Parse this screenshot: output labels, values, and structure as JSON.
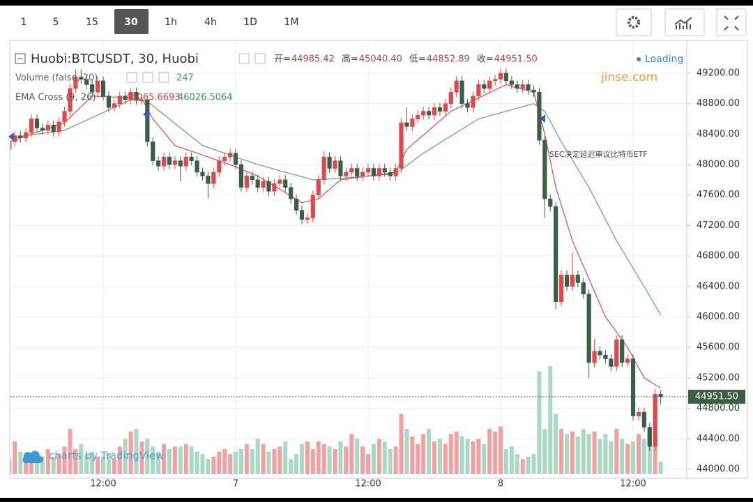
{
  "toolbar": {
    "intervals": [
      "1",
      "5",
      "15",
      "30",
      "1h",
      "4h",
      "1D",
      "1M"
    ]
  },
  "chart_data": {
    "type": "candlestick",
    "title": "Huobi:BTCUSDT, 30, Huobi",
    "legend_ohlc": [
      {
        "label": "开=",
        "value": "44985.42"
      },
      {
        "label": "高=",
        "value": "45040.40"
      },
      {
        "label": "低=",
        "value": "44852.89"
      },
      {
        "label": "收=",
        "value": "44951.50"
      }
    ],
    "volume_label": "Volume (false, 20)",
    "ema_label": "EMA Cross (9, 26)",
    "status": "Loading",
    "watermark": "jinse.com",
    "annotation": "SEC决定延迟审议比特币ETF",
    "branding": "charts by TradingView",
    "last_price_label": "44951.50",
    "categories": [
      null,
      null,
      null,
      null,
      null,
      null,
      null,
      null,
      null,
      null,
      null,
      null,
      null,
      null,
      null,
      null,
      null,
      "12:00",
      null,
      null,
      null,
      null,
      null,
      null,
      null,
      null,
      null,
      null,
      null,
      null,
      null,
      null,
      null,
      null,
      null,
      null,
      null,
      null,
      null,
      null,
      null,
      "7",
      null,
      null,
      null,
      null,
      null,
      null,
      null,
      null,
      null,
      null,
      null,
      null,
      null,
      null,
      null,
      null,
      null,
      null,
      null,
      null,
      null,
      null,
      null,
      "12:00",
      null,
      null,
      null,
      null,
      null,
      null,
      null,
      null,
      null,
      null,
      null,
      null,
      null,
      null,
      null,
      null,
      null,
      null,
      null,
      null,
      null,
      null,
      null,
      "8",
      null,
      null,
      null,
      null,
      null,
      null,
      null,
      null,
      null,
      null,
      null,
      null,
      null,
      null,
      null,
      null,
      null,
      null,
      null,
      null,
      null,
      null,
      null,
      "12:00",
      null,
      null,
      null,
      null,
      null
    ],
    "open": [
      48200,
      48300,
      48380,
      48350,
      48420,
      48600,
      48480,
      48450,
      48520,
      48430,
      48560,
      48700,
      49000,
      49150,
      49120,
      49050,
      48950,
      49100,
      48900,
      48750,
      48800,
      48900,
      48850,
      48950,
      48850,
      48850,
      48300,
      48050,
      47980,
      48100,
      48000,
      48050,
      47980,
      48100,
      48050,
      47900,
      47850,
      47750,
      47900,
      48050,
      48100,
      48150,
      48000,
      47700,
      47850,
      47800,
      47700,
      47780,
      47650,
      47750,
      47800,
      47700,
      47550,
      47400,
      47280,
      47300,
      47600,
      47800,
      48100,
      47950,
      48050,
      47850,
      47900,
      47950,
      47850,
      47900,
      47950,
      47850,
      47950,
      47900,
      47850,
      47950,
      48550,
      48500,
      48600,
      48650,
      48700,
      48650,
      48750,
      48700,
      48800,
      48950,
      49100,
      48800,
      48750,
      48900,
      49050,
      49000,
      49100,
      49120,
      49200,
      49100,
      49050,
      49000,
      49050,
      48980,
      48950,
      48320,
      47550,
      47450,
      46200,
      46550,
      46400,
      46550,
      46450,
      46300,
      45400,
      45550,
      45500,
      45450,
      45350,
      45700,
      45400,
      45450,
      44700,
      44750,
      44550,
      44300,
      44985.42
    ],
    "high": [
      48360,
      48440,
      48440,
      48480,
      48660,
      48660,
      48540,
      48580,
      48580,
      48620,
      48760,
      49060,
      49250,
      49250,
      49180,
      49110,
      49160,
      49160,
      48960,
      48860,
      48960,
      48960,
      49010,
      49010,
      48910,
      48910,
      48360,
      48110,
      48160,
      48160,
      48110,
      48110,
      48160,
      48160,
      48110,
      47960,
      47910,
      47960,
      48110,
      48160,
      48210,
      48210,
      48060,
      47910,
      47910,
      47860,
      47840,
      47840,
      47810,
      47860,
      47860,
      47760,
      47610,
      47460,
      47360,
      47660,
      47860,
      48180,
      48160,
      48110,
      48110,
      47960,
      48010,
      48010,
      47960,
      48010,
      48010,
      48010,
      48010,
      47960,
      48010,
      48610,
      48750,
      48660,
      48710,
      48760,
      48760,
      48810,
      48810,
      48860,
      49010,
      49160,
      49160,
      48860,
      48960,
      49110,
      49110,
      49160,
      49180,
      49260,
      49260,
      49160,
      49110,
      49110,
      49110,
      49040,
      49010,
      48380,
      47610,
      47510,
      46610,
      46610,
      46850,
      46610,
      46510,
      46360,
      45710,
      45610,
      45560,
      45510,
      45760,
      45760,
      45510,
      45510,
      44810,
      44810,
      44610,
      45050,
      45040.4
    ],
    "low": [
      48140,
      48240,
      48290,
      48290,
      48360,
      48420,
      48390,
      48390,
      48370,
      48370,
      48500,
      48640,
      48940,
      49060,
      48990,
      48890,
      48890,
      48840,
      48690,
      48690,
      48740,
      48790,
      48790,
      48790,
      48790,
      48240,
      47990,
      47920,
      47920,
      47940,
      47940,
      47780,
      47920,
      47990,
      47840,
      47790,
      47560,
      47690,
      47840,
      47990,
      48040,
      47940,
      47640,
      47640,
      47740,
      47640,
      47640,
      47590,
      47590,
      47690,
      47640,
      47490,
      47340,
      47220,
      47220,
      47240,
      47540,
      47740,
      47890,
      47890,
      47790,
      47790,
      47840,
      47790,
      47790,
      47840,
      47790,
      47790,
      47840,
      47790,
      47790,
      47890,
      48440,
      48440,
      48540,
      48590,
      48590,
      48590,
      48640,
      48640,
      48740,
      48890,
      48740,
      48690,
      48690,
      48840,
      48940,
      48940,
      49040,
      49060,
      49040,
      48990,
      48940,
      48940,
      48920,
      48890,
      48260,
      47300,
      47390,
      46100,
      46140,
      46340,
      46340,
      46390,
      46240,
      45200,
      45340,
      45440,
      45390,
      45290,
      45290,
      45340,
      45340,
      44640,
      44640,
      44490,
      44240,
      44240,
      44852.89
    ],
    "close": [
      48300,
      48380,
      48350,
      48420,
      48600,
      48480,
      48450,
      48520,
      48430,
      48560,
      48700,
      49000,
      49150,
      49120,
      49050,
      48950,
      49100,
      48900,
      48750,
      48800,
      48900,
      48850,
      48950,
      48850,
      48850,
      48300,
      48050,
      47980,
      48100,
      48000,
      48050,
      47980,
      48100,
      48050,
      47900,
      47850,
      47750,
      47900,
      48050,
      48100,
      48150,
      48000,
      47700,
      47850,
      47800,
      47700,
      47780,
      47650,
      47750,
      47800,
      47700,
      47550,
      47400,
      47280,
      47300,
      47600,
      47800,
      48100,
      47950,
      48050,
      47850,
      47900,
      47950,
      47850,
      47900,
      47950,
      47850,
      47950,
      47900,
      47850,
      47950,
      48550,
      48500,
      48600,
      48650,
      48700,
      48650,
      48750,
      48700,
      48800,
      48950,
      49100,
      48800,
      48750,
      48900,
      49050,
      49000,
      49100,
      49120,
      49200,
      49100,
      49050,
      49000,
      49050,
      48980,
      48950,
      48320,
      47550,
      47450,
      46200,
      46550,
      46400,
      46550,
      46450,
      46300,
      45400,
      45550,
      45500,
      45450,
      45350,
      45700,
      45400,
      45450,
      44700,
      44750,
      44550,
      44300,
      44985.42,
      44951.5
    ],
    "volume": [
      300,
      650,
      450,
      350,
      400,
      300,
      350,
      500,
      350,
      400,
      550,
      900,
      500,
      600,
      400,
      450,
      350,
      350,
      400,
      300,
      550,
      700,
      850,
      900,
      650,
      700,
      550,
      450,
      600,
      500,
      550,
      550,
      600,
      550,
      450,
      400,
      300,
      350,
      450,
      500,
      400,
      450,
      500,
      600,
      500,
      700,
      600,
      450,
      500,
      550,
      650,
      300,
      400,
      600,
      650,
      500,
      650,
      600,
      550,
      500,
      650,
      550,
      800,
      700,
      550,
      400,
      600,
      700,
      650,
      500,
      550,
      1200,
      900,
      750,
      600,
      800,
      900,
      650,
      700,
      600,
      800,
      850,
      750,
      700,
      650,
      700,
      600,
      900,
      850,
      950,
      500,
      550,
      400,
      300,
      350,
      400,
      2050,
      900,
      2150,
      1200,
      900,
      800,
      850,
      750,
      900,
      800,
      850,
      700,
      800,
      650,
      900,
      700,
      600,
      650,
      800,
      700,
      800,
      600,
      247
    ],
    "volume_lim": [
      0,
      2500
    ],
    "up_color": "#e0484a",
    "down_color": "#3b5e48",
    "up_volume_color": "#f2a0a0",
    "down_volume_color": "#a9d8c4",
    "series": [
      {
        "color": "#e04b4b",
        "values": [
          48300,
          48325,
          48350,
          48375,
          48400,
          48425,
          48450,
          48475,
          48500,
          48525,
          48550,
          48620,
          48690,
          48760,
          48830,
          48900,
          48897,
          48893,
          48890,
          48887,
          48883,
          48880,
          48877,
          48873,
          48870,
          48735,
          48600,
          48513,
          48425,
          48338,
          48250,
          48225,
          48200,
          48175,
          48150,
          48125,
          48100,
          48075,
          48050,
          48025,
          48000,
          47970,
          47940,
          47910,
          47880,
          47850,
          47806,
          47763,
          47719,
          47675,
          47631,
          47588,
          47544,
          47500,
          47517,
          47533,
          47550,
          47613,
          47675,
          47738,
          47800,
          47810,
          47820,
          47830,
          47840,
          47850,
          47860,
          47870,
          47880,
          47890,
          47900,
          48050,
          48200,
          48263,
          48325,
          48388,
          48450,
          48513,
          48575,
          48638,
          48700,
          48735,
          48770,
          48805,
          48840,
          48875,
          48910,
          48945,
          48980,
          49015,
          49050,
          49030,
          49010,
          48990,
          48970,
          48950,
          48675,
          48400,
          48050,
          47700,
          47467,
          47233,
          47000,
          46833,
          46667,
          46500,
          46333,
          46167,
          46000,
          45900,
          45800,
          45700,
          45600,
          45467,
          45333,
          45200,
          45155,
          45110,
          45065.6693
        ]
      },
      {
        "color": "#5fa56c",
        "values": [
          48350,
          48360,
          48370,
          48380,
          48390,
          48400,
          48410,
          48420,
          48430,
          48440,
          48450,
          48483,
          48517,
          48550,
          48583,
          48617,
          48650,
          48683,
          48717,
          48750,
          48783,
          48817,
          48850,
          48843,
          48837,
          48830,
          48772,
          48714,
          48656,
          48598,
          48540,
          48482,
          48424,
          48366,
          48308,
          48250,
          48225,
          48200,
          48175,
          48150,
          48125,
          48100,
          48075,
          48050,
          48025,
          48000,
          47980,
          47960,
          47940,
          47920,
          47900,
          47880,
          47860,
          47840,
          47820,
          47800,
          47804,
          47808,
          47812,
          47816,
          47820,
          47826,
          47832,
          47838,
          47844,
          47850,
          47856,
          47862,
          47868,
          47874,
          47880,
          47934,
          47988,
          48042,
          48096,
          48150,
          48195,
          48240,
          48285,
          48330,
          48375,
          48420,
          48465,
          48510,
          48555,
          48600,
          48620,
          48640,
          48660,
          48680,
          48700,
          48720,
          48740,
          48760,
          48780,
          48800,
          48750,
          48700,
          48567,
          48433,
          48300,
          48180,
          48060,
          47940,
          47820,
          47700,
          47560,
          47420,
          47280,
          47140,
          47000,
          46880,
          46760,
          46640,
          46520,
          46400,
          46275,
          46150,
          46026.5064
        ]
      }
    ],
    "ylim": [
      43890,
      49630
    ],
    "yticks": [
      {
        "value": 44000,
        "label": "44000.00"
      },
      {
        "value": 44400,
        "label": "44400.00"
      },
      {
        "value": 44800,
        "label": "44800.00"
      },
      {
        "value": 45200,
        "label": "45200.00"
      },
      {
        "value": 45600,
        "label": "45600.00"
      },
      {
        "value": 46000,
        "label": "46000.00"
      },
      {
        "value": 46400,
        "label": "46400.00"
      },
      {
        "value": 46800,
        "label": "46800.00"
      },
      {
        "value": 47200,
        "label": "47200.00"
      },
      {
        "value": 47600,
        "label": "47600.00"
      },
      {
        "value": 48000,
        "label": "48000.00"
      },
      {
        "value": 48400,
        "label": "48400.00"
      },
      {
        "value": 48800,
        "label": "48800.00"
      },
      {
        "value": 49200,
        "label": "49200.00"
      }
    ],
    "grid": true
  }
}
